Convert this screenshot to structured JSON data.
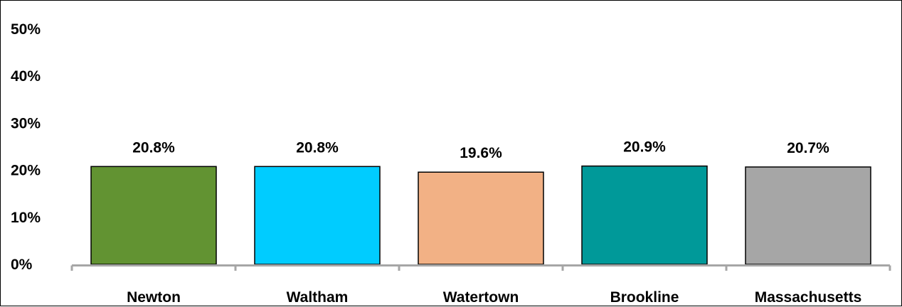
{
  "chart_data": {
    "type": "bar",
    "categories": [
      "Newton",
      "Waltham",
      "Watertown",
      "Brookline",
      "Massachusetts"
    ],
    "values": [
      20.8,
      20.8,
      19.6,
      20.9,
      20.7
    ],
    "data_labels": [
      "20.8%",
      "20.8%",
      "19.6%",
      "20.9%",
      "20.7%"
    ],
    "bar_colors": [
      "#629332",
      "#00CCFF",
      "#F2B185",
      "#009999",
      "#A6A6A6"
    ],
    "y_ticks": [
      0,
      10,
      20,
      30,
      40,
      50
    ],
    "y_tick_labels": [
      "0%",
      "10%",
      "20%",
      "30%",
      "40%",
      "50%"
    ],
    "ylim": [
      0,
      50
    ],
    "grid": false,
    "legend": "none"
  }
}
